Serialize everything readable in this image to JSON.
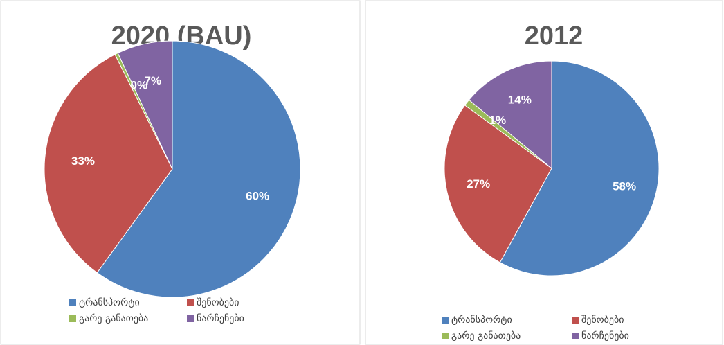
{
  "chart_data": [
    {
      "type": "pie",
      "title": "2020 (BAU)",
      "categories": [
        "ტრანსპორტი",
        "შენობები",
        "გარე განათება",
        "ნარჩენები"
      ],
      "values": [
        60,
        32.6,
        0.4,
        7
      ],
      "value_labels": [
        "60%",
        "33%",
        "0%",
        "7%"
      ],
      "colors": [
        "#4f81bd",
        "#c0504d",
        "#9bbb59",
        "#8064a2"
      ]
    },
    {
      "type": "pie",
      "title": "2012",
      "categories": [
        "ტრანსპორტი",
        "შენობები",
        "გარე განათება",
        "ნარჩენები"
      ],
      "values": [
        58,
        27,
        1,
        14
      ],
      "value_labels": [
        "58%",
        "27%",
        "1%",
        "14%"
      ],
      "colors": [
        "#4f81bd",
        "#c0504d",
        "#9bbb59",
        "#8064a2"
      ]
    }
  ]
}
